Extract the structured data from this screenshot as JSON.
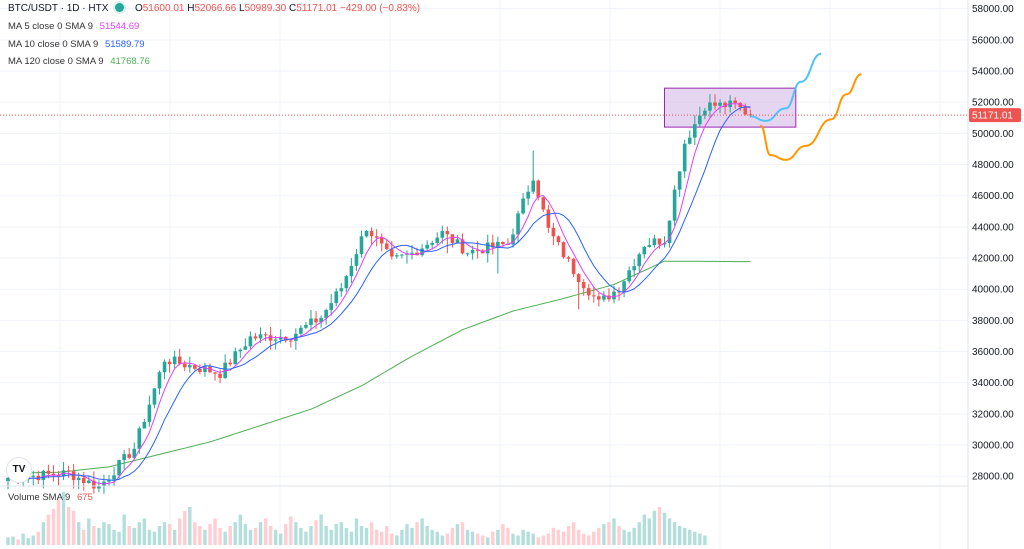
{
  "header": {
    "symbol": "BTC/USDT · 1D · HTX",
    "o_label": "O",
    "o": "51600.01",
    "h_label": "H",
    "h": "52066.66",
    "l_label": "L",
    "l": "50989.30",
    "c_label": "C",
    "c": "51171.01",
    "change": "−429.00 (−0.83%)"
  },
  "indicators": [
    {
      "label": "MA 5 close 0 SMA 9",
      "value": "51544.69",
      "color": "#e040fb"
    },
    {
      "label": "MA 10 close 0 SMA 9",
      "value": "51589.79",
      "color": "#2962ff"
    },
    {
      "label": "MA 120 close 0 SMA 9",
      "value": "41768.76",
      "color": "#4caf50"
    }
  ],
  "volume": {
    "label": "Volume SMA 9",
    "value": "675",
    "color": "#ef5350"
  },
  "logo_text": "TV",
  "colors": {
    "up": "#26a69a",
    "down": "#ef5350",
    "last_price_bg": "#ef5350",
    "ma5": "#e040fb",
    "ma10": "#2962ff",
    "ma120": "#4caf50",
    "box_fill": "#d1b3e6",
    "box_stroke": "#9c27b0",
    "projection_up": "#4fc3f7",
    "projection_down": "#ff9800"
  },
  "chart_data": {
    "type": "candlestick",
    "y_axis": {
      "ticks": [
        "28000.00",
        "30000.00",
        "32000.00",
        "34000.00",
        "36000.00",
        "38000.00",
        "40000.00",
        "42000.00",
        "44000.00",
        "46000.00",
        "48000.00",
        "50000.00",
        "52000.00",
        "54000.00",
        "56000.00",
        "58000.00"
      ],
      "range": [
        27500,
        58300
      ],
      "last_price_label": "51171.01",
      "last_price": 51171.01
    },
    "anchors": [
      [
        0,
        27900
      ],
      [
        12,
        28200
      ],
      [
        18,
        27300
      ],
      [
        25,
        29800
      ],
      [
        31,
        35500
      ],
      [
        42,
        34600
      ],
      [
        48,
        36900
      ],
      [
        56,
        37000
      ],
      [
        62,
        38200
      ],
      [
        66,
        40100
      ],
      [
        71,
        44000
      ],
      [
        76,
        41800
      ],
      [
        80,
        42300
      ],
      [
        86,
        43600
      ],
      [
        91,
        42400
      ],
      [
        99,
        42900
      ],
      [
        104,
        47300
      ],
      [
        107,
        43800
      ],
      [
        112,
        41200
      ],
      [
        117,
        39100
      ],
      [
        121,
        40100
      ],
      [
        126,
        42900
      ],
      [
        130,
        43200
      ],
      [
        134,
        49400
      ],
      [
        138,
        51800
      ],
      [
        144,
        51800
      ],
      [
        147,
        51171
      ]
    ],
    "wicks": [
      [
        104,
        48900
      ],
      [
        113,
        38700
      ],
      [
        97,
        41000
      ],
      [
        87,
        42300
      ]
    ],
    "ma120_anchors": [
      [
        0,
        28200
      ],
      [
        10,
        28250
      ],
      [
        20,
        28600
      ],
      [
        40,
        30200
      ],
      [
        60,
        32300
      ],
      [
        70,
        33800
      ],
      [
        80,
        35700
      ],
      [
        90,
        37400
      ],
      [
        100,
        38600
      ],
      [
        110,
        39400
      ],
      [
        120,
        40300
      ],
      [
        130,
        41800
      ],
      [
        147,
        41768
      ]
    ],
    "marked_range": {
      "start_bar": 130,
      "end_bar": 156,
      "low": 50400,
      "high": 52900
    },
    "projection_bullish": [
      [
        147,
        51100
      ],
      [
        150,
        50800
      ],
      [
        154,
        51600
      ],
      [
        157,
        53300
      ],
      [
        161,
        55100
      ]
    ],
    "projection_bearish": [
      [
        149,
        50500
      ],
      [
        151,
        48600
      ],
      [
        154,
        48300
      ],
      [
        158,
        49200
      ],
      [
        163,
        50900
      ],
      [
        166,
        52500
      ],
      [
        169,
        53800
      ]
    ],
    "volume_bars": [
      20,
      22,
      15,
      30,
      18,
      25,
      35,
      60,
      80,
      95,
      120,
      140,
      100,
      90,
      60,
      40,
      70,
      50,
      45,
      60,
      55,
      40,
      35,
      80,
      50,
      45,
      60,
      70,
      40,
      35,
      50,
      60,
      55,
      40,
      70,
      90,
      100,
      60,
      50,
      40,
      55,
      70,
      45,
      35,
      50,
      60,
      80,
      55,
      40,
      45,
      60,
      70,
      50,
      40,
      30,
      55,
      75,
      60,
      45,
      35,
      50,
      65,
      80,
      50,
      40,
      55,
      60,
      45,
      35,
      70,
      50,
      45,
      60,
      40,
      35,
      50,
      30,
      25,
      40,
      55,
      45,
      60,
      70,
      50,
      40,
      35,
      25,
      30,
      45,
      55,
      60,
      40,
      35,
      30,
      25,
      20,
      35,
      40,
      55,
      45,
      30,
      25,
      40,
      35,
      30,
      20,
      25,
      30,
      45,
      40,
      35,
      50,
      60,
      40,
      30,
      25,
      35,
      45,
      55,
      60,
      70,
      50,
      40,
      35,
      45,
      60,
      80,
      70,
      90,
      100,
      85,
      70,
      60,
      50,
      45,
      40,
      35,
      30,
      25
    ]
  }
}
